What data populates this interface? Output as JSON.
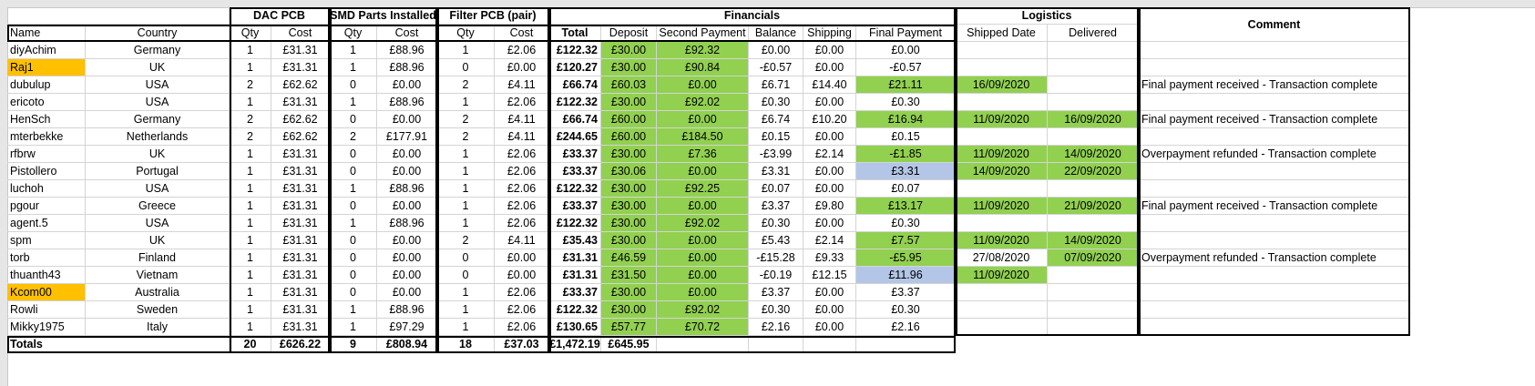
{
  "groups": {
    "dac": "DAC PCB",
    "smd": "SMD Parts Installed",
    "filter": "Filter PCB (pair)",
    "financials": "Financials",
    "logistics": "Logistics",
    "comment": "Comment"
  },
  "columns": [
    "Name",
    "Country",
    "Qty",
    "Cost",
    "Qty",
    "Cost",
    "Qty",
    "Cost",
    "Total",
    "Deposit",
    "Second Payment",
    "Balance",
    "Shipping",
    "Final Payment",
    "Shipped Date",
    "Delivered"
  ],
  "rows": [
    {
      "name": "diyAchim",
      "country": "Germany",
      "dq": "1",
      "dc": "£31.31",
      "sq": "1",
      "sc": "£88.96",
      "fq": "1",
      "fc": "£2.06",
      "total": "£122.32",
      "deposit": "£30.00",
      "second": "£92.32",
      "balance": "£0.00",
      "shipping": "£0.00",
      "final": "£0.00",
      "shipped": "",
      "delivered": "",
      "comment": ""
    },
    {
      "name": "Raj1",
      "country": "UK",
      "dq": "1",
      "dc": "£31.31",
      "sq": "1",
      "sc": "£88.96",
      "fq": "0",
      "fc": "£0.00",
      "total": "£120.27",
      "deposit": "£30.00",
      "second": "£90.84",
      "balance": "-£0.57",
      "shipping": "£0.00",
      "final": "-£0.57",
      "shipped": "",
      "delivered": "",
      "comment": ""
    },
    {
      "name": "dubulup",
      "country": "USA",
      "dq": "2",
      "dc": "£62.62",
      "sq": "0",
      "sc": "£0.00",
      "fq": "2",
      "fc": "£4.11",
      "total": "£66.74",
      "deposit": "£60.03",
      "second": "£0.00",
      "balance": "£6.71",
      "shipping": "£14.40",
      "final": "£21.11",
      "shipped": "16/09/2020",
      "delivered": "",
      "comment": "Final payment received - Transaction complete"
    },
    {
      "name": "ericoto",
      "country": "USA",
      "dq": "1",
      "dc": "£31.31",
      "sq": "1",
      "sc": "£88.96",
      "fq": "1",
      "fc": "£2.06",
      "total": "£122.32",
      "deposit": "£30.00",
      "second": "£92.02",
      "balance": "£0.30",
      "shipping": "£0.00",
      "final": "£0.30",
      "shipped": "",
      "delivered": "",
      "comment": ""
    },
    {
      "name": "HenSch",
      "country": "Germany",
      "dq": "2",
      "dc": "£62.62",
      "sq": "0",
      "sc": "£0.00",
      "fq": "2",
      "fc": "£4.11",
      "total": "£66.74",
      "deposit": "£60.00",
      "second": "£0.00",
      "balance": "£6.74",
      "shipping": "£10.20",
      "final": "£16.94",
      "shipped": "11/09/2020",
      "delivered": "16/09/2020",
      "comment": "Final payment received - Transaction complete"
    },
    {
      "name": "mterbekke",
      "country": "Netherlands",
      "dq": "2",
      "dc": "£62.62",
      "sq": "2",
      "sc": "£177.91",
      "fq": "2",
      "fc": "£4.11",
      "total": "£244.65",
      "deposit": "£60.00",
      "second": "£184.50",
      "balance": "£0.15",
      "shipping": "£0.00",
      "final": "£0.15",
      "shipped": "",
      "delivered": "",
      "comment": ""
    },
    {
      "name": "rfbrw",
      "country": "UK",
      "dq": "1",
      "dc": "£31.31",
      "sq": "0",
      "sc": "£0.00",
      "fq": "1",
      "fc": "£2.06",
      "total": "£33.37",
      "deposit": "£30.00",
      "second": "£7.36",
      "balance": "-£3.99",
      "shipping": "£2.14",
      "final": "-£1.85",
      "shipped": "11/09/2020",
      "delivered": "14/09/2020",
      "comment": "Overpayment refunded - Transaction complete"
    },
    {
      "name": "Pistollero",
      "country": "Portugal",
      "dq": "1",
      "dc": "£31.31",
      "sq": "0",
      "sc": "£0.00",
      "fq": "1",
      "fc": "£2.06",
      "total": "£33.37",
      "deposit": "£30.06",
      "second": "£0.00",
      "balance": "£3.31",
      "shipping": "£0.00",
      "final": "£3.31",
      "shipped": "14/09/2020",
      "delivered": "22/09/2020",
      "comment": ""
    },
    {
      "name": "luchoh",
      "country": "USA",
      "dq": "1",
      "dc": "£31.31",
      "sq": "1",
      "sc": "£88.96",
      "fq": "1",
      "fc": "£2.06",
      "total": "£122.32",
      "deposit": "£30.00",
      "second": "£92.25",
      "balance": "£0.07",
      "shipping": "£0.00",
      "final": "£0.07",
      "shipped": "",
      "delivered": "",
      "comment": ""
    },
    {
      "name": "pgour",
      "country": "Greece",
      "dq": "1",
      "dc": "£31.31",
      "sq": "0",
      "sc": "£0.00",
      "fq": "1",
      "fc": "£2.06",
      "total": "£33.37",
      "deposit": "£30.00",
      "second": "£0.00",
      "balance": "£3.37",
      "shipping": "£9.80",
      "final": "£13.17",
      "shipped": "11/09/2020",
      "delivered": "21/09/2020",
      "comment": "Final payment received - Transaction complete"
    },
    {
      "name": "agent.5",
      "country": "USA",
      "dq": "1",
      "dc": "£31.31",
      "sq": "1",
      "sc": "£88.96",
      "fq": "1",
      "fc": "£2.06",
      "total": "£122.32",
      "deposit": "£30.00",
      "second": "£92.02",
      "balance": "£0.30",
      "shipping": "£0.00",
      "final": "£0.30",
      "shipped": "",
      "delivered": "",
      "comment": ""
    },
    {
      "name": "spm",
      "country": "UK",
      "dq": "1",
      "dc": "£31.31",
      "sq": "0",
      "sc": "£0.00",
      "fq": "2",
      "fc": "£4.11",
      "total": "£35.43",
      "deposit": "£30.00",
      "second": "£0.00",
      "balance": "£5.43",
      "shipping": "£2.14",
      "final": "£7.57",
      "shipped": "11/09/2020",
      "delivered": "14/09/2020",
      "comment": ""
    },
    {
      "name": "torb",
      "country": "Finland",
      "dq": "1",
      "dc": "£31.31",
      "sq": "0",
      "sc": "£0.00",
      "fq": "0",
      "fc": "£0.00",
      "total": "£31.31",
      "deposit": "£46.59",
      "second": "£0.00",
      "balance": "-£15.28",
      "shipping": "£9.33",
      "final": "-£5.95",
      "shipped": "27/08/2020",
      "delivered": "07/09/2020",
      "comment": "Overpayment refunded - Transaction complete"
    },
    {
      "name": "thuanth43",
      "country": "Vietnam",
      "dq": "1",
      "dc": "£31.31",
      "sq": "0",
      "sc": "£0.00",
      "fq": "0",
      "fc": "£0.00",
      "total": "£31.31",
      "deposit": "£31.50",
      "second": "£0.00",
      "balance": "-£0.19",
      "shipping": "£12.15",
      "final": "£11.96",
      "shipped": "11/09/2020",
      "delivered": "",
      "comment": ""
    },
    {
      "name": "Kcom00",
      "country": "Australia",
      "dq": "1",
      "dc": "£31.31",
      "sq": "0",
      "sc": "£0.00",
      "fq": "1",
      "fc": "£2.06",
      "total": "£33.37",
      "deposit": "£30.00",
      "second": "£0.00",
      "balance": "£3.37",
      "shipping": "£0.00",
      "final": "£3.37",
      "shipped": "",
      "delivered": "",
      "comment": ""
    },
    {
      "name": "Rowli",
      "country": "Sweden",
      "dq": "1",
      "dc": "£31.31",
      "sq": "1",
      "sc": "£88.96",
      "fq": "1",
      "fc": "£2.06",
      "total": "£122.32",
      "deposit": "£30.00",
      "second": "£92.02",
      "balance": "£0.30",
      "shipping": "£0.00",
      "final": "£0.30",
      "shipped": "",
      "delivered": "",
      "comment": ""
    },
    {
      "name": "Mikky1975",
      "country": "Italy",
      "dq": "1",
      "dc": "£31.31",
      "sq": "1",
      "sc": "£97.29",
      "fq": "1",
      "fc": "£2.06",
      "total": "£130.65",
      "deposit": "£57.77",
      "second": "£70.72",
      "balance": "£2.16",
      "shipping": "£0.00",
      "final": "£2.16",
      "shipped": "",
      "delivered": "",
      "comment": ""
    }
  ],
  "totals": {
    "label": "Totals",
    "dq": "20",
    "dc": "£626.22",
    "sq": "9",
    "sc": "£808.94",
    "fq": "18",
    "fc": "£37.03",
    "total": "£1,472.19",
    "deposit": "£645.95"
  },
  "colors": {
    "green": "#92d050",
    "blue": "#b4c6e7",
    "orange": "#ffc000"
  },
  "highlights": {
    "orange_names": [
      "Raj1",
      "Kcom00"
    ],
    "green_fields": [
      "deposit",
      "second"
    ],
    "final_green": [
      "dubulup",
      "HenSch",
      "rfbrw",
      "pgour",
      "spm",
      "torb"
    ],
    "final_blue": [
      "Pistollero",
      "thuanth43"
    ],
    "shipped_green": [
      "dubulup",
      "HenSch",
      "rfbrw",
      "Pistollero",
      "pgour",
      "spm",
      "thuanth43"
    ],
    "delivered_green": [
      "HenSch",
      "rfbrw",
      "Pistollero",
      "pgour",
      "spm",
      "torb"
    ]
  }
}
